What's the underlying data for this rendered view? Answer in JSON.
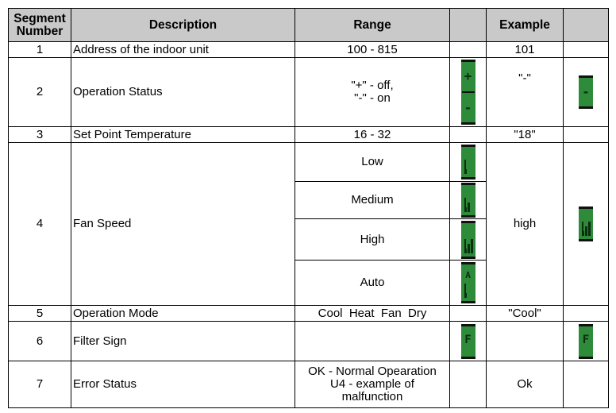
{
  "headers": {
    "segment": "Segment\nNumber",
    "description": "Description",
    "range": "Range",
    "blank": "",
    "example": "Example"
  },
  "rows": [
    {
      "segment": "1",
      "description": "Address of the indoor unit",
      "range": "100 - 815",
      "example": "101"
    },
    {
      "segment": "2",
      "description": "Operation Status",
      "range": "\"+\"  - off,\n\"-\"  - on",
      "example": "\"-\"",
      "lcd_range_glyphs": [
        "+",
        "-"
      ],
      "lcd_example_glyph": "-"
    },
    {
      "segment": "3",
      "description": "Set Point Temperature",
      "range": "16 - 32",
      "example": "\"18\""
    },
    {
      "segment": "4",
      "description": "Fan Speed",
      "ranges": [
        "Low",
        "Medium",
        "High",
        "Auto"
      ],
      "example": "high",
      "fan_levels": [
        1,
        2,
        3,
        1
      ],
      "auto_glyph": "A",
      "lcd_example_level": 3
    },
    {
      "segment": "5",
      "description": "Operation Mode",
      "range": "Cool  Heat  Fan  Dry",
      "example": "\"Cool\""
    },
    {
      "segment": "6",
      "description": "Filter Sign",
      "range": "",
      "example": "",
      "lcd_glyph": "F"
    },
    {
      "segment": "7",
      "description": "Error Status",
      "range": "OK - Normal Opearation\nU4 - example of\nmalfunction",
      "example": "Ok"
    }
  ],
  "colors": {
    "header_bg": "#c9c9c9",
    "lcd_green": "#2e8b3a",
    "lcd_dark": "#0b2e10"
  }
}
